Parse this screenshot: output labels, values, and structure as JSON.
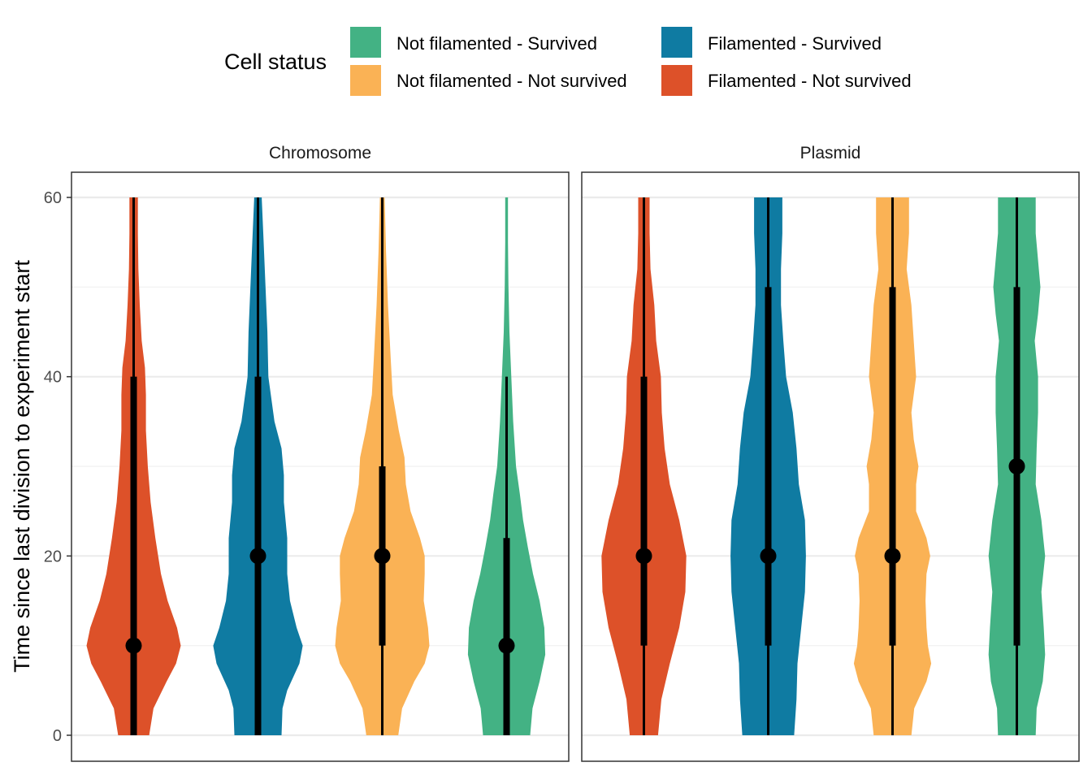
{
  "legend": {
    "title": "Cell status",
    "items": [
      {
        "label": "Not filamented - Survived",
        "color": "#43B284"
      },
      {
        "label": "Not filamented - Not survived",
        "color": "#FAB255"
      },
      {
        "label": "Filamented - Survived",
        "color": "#0F7BA2"
      },
      {
        "label": "Filamented - Not survived",
        "color": "#DD5129"
      }
    ]
  },
  "chart_data": {
    "type": "violin",
    "ylabel": "Time since last division to experiment start",
    "xlabel": "",
    "ylim": [
      0,
      60
    ],
    "y_ticks": [
      0,
      20,
      40,
      60
    ],
    "grid": true,
    "legend_position": "top",
    "facets": [
      {
        "title": "Chromosome",
        "violins": [
          {
            "status": "Filamented - Not survived",
            "color": "#DD5129",
            "profile": [
              [
                0,
                0.33
              ],
              [
                3,
                0.42
              ],
              [
                6,
                0.7
              ],
              [
                8,
                0.9
              ],
              [
                10,
                1.0
              ],
              [
                12,
                0.92
              ],
              [
                15,
                0.72
              ],
              [
                18,
                0.58
              ],
              [
                22,
                0.46
              ],
              [
                26,
                0.36
              ],
              [
                30,
                0.3
              ],
              [
                34,
                0.26
              ],
              [
                38,
                0.26
              ],
              [
                41,
                0.24
              ],
              [
                44,
                0.17
              ],
              [
                48,
                0.13
              ],
              [
                52,
                0.1
              ],
              [
                56,
                0.09
              ],
              [
                60,
                0.09
              ]
            ],
            "median": 10,
            "q1": 0,
            "q3": 40,
            "min": 0,
            "max": 60
          },
          {
            "status": "Filamented - Survived",
            "color": "#0F7BA2",
            "profile": [
              [
                0,
                0.5
              ],
              [
                3,
                0.52
              ],
              [
                5,
                0.62
              ],
              [
                8,
                0.88
              ],
              [
                10,
                0.95
              ],
              [
                12,
                0.82
              ],
              [
                15,
                0.68
              ],
              [
                18,
                0.62
              ],
              [
                22,
                0.62
              ],
              [
                26,
                0.55
              ],
              [
                29,
                0.55
              ],
              [
                32,
                0.5
              ],
              [
                35,
                0.35
              ],
              [
                40,
                0.22
              ],
              [
                45,
                0.2
              ],
              [
                50,
                0.16
              ],
              [
                55,
                0.12
              ],
              [
                60,
                0.08
              ]
            ],
            "median": 20,
            "q1": 0,
            "q3": 40,
            "min": 0,
            "max": 60
          },
          {
            "status": "Not filamented - Not survived",
            "color": "#FAB255",
            "profile": [
              [
                0,
                0.34
              ],
              [
                3,
                0.42
              ],
              [
                6,
                0.68
              ],
              [
                8,
                0.9
              ],
              [
                10,
                1.0
              ],
              [
                12,
                0.97
              ],
              [
                15,
                0.88
              ],
              [
                18,
                0.9
              ],
              [
                20,
                0.9
              ],
              [
                22,
                0.8
              ],
              [
                25,
                0.6
              ],
              [
                28,
                0.5
              ],
              [
                31,
                0.47
              ],
              [
                34,
                0.35
              ],
              [
                38,
                0.22
              ],
              [
                42,
                0.18
              ],
              [
                48,
                0.12
              ],
              [
                54,
                0.08
              ],
              [
                60,
                0.05
              ]
            ],
            "median": 20,
            "q1": 10,
            "q3": 30,
            "min": 0,
            "max": 60
          },
          {
            "status": "Not filamented - Survived",
            "color": "#43B284",
            "profile": [
              [
                0,
                0.5
              ],
              [
                3,
                0.55
              ],
              [
                6,
                0.7
              ],
              [
                9,
                0.82
              ],
              [
                12,
                0.8
              ],
              [
                15,
                0.7
              ],
              [
                18,
                0.56
              ],
              [
                21,
                0.45
              ],
              [
                24,
                0.35
              ],
              [
                27,
                0.28
              ],
              [
                30,
                0.2
              ],
              [
                35,
                0.14
              ],
              [
                40,
                0.1
              ],
              [
                45,
                0.06
              ],
              [
                50,
                0.04
              ],
              [
                55,
                0.03
              ],
              [
                60,
                0.03
              ]
            ],
            "median": 10,
            "q1": 0,
            "q3": 22,
            "min": 0,
            "max": 40
          }
        ]
      },
      {
        "title": "Plasmid",
        "violins": [
          {
            "status": "Filamented - Not survived",
            "color": "#DD5129",
            "profile": [
              [
                0,
                0.3
              ],
              [
                4,
                0.37
              ],
              [
                8,
                0.55
              ],
              [
                12,
                0.75
              ],
              [
                16,
                0.88
              ],
              [
                20,
                0.9
              ],
              [
                24,
                0.75
              ],
              [
                28,
                0.55
              ],
              [
                32,
                0.44
              ],
              [
                36,
                0.38
              ],
              [
                40,
                0.36
              ],
              [
                44,
                0.26
              ],
              [
                48,
                0.22
              ],
              [
                52,
                0.14
              ],
              [
                56,
                0.12
              ],
              [
                60,
                0.12
              ]
            ],
            "median": 20,
            "q1": 10,
            "q3": 40,
            "min": 0,
            "max": 60
          },
          {
            "status": "Filamented - Survived",
            "color": "#0F7BA2",
            "profile": [
              [
                0,
                0.55
              ],
              [
                4,
                0.6
              ],
              [
                8,
                0.62
              ],
              [
                12,
                0.7
              ],
              [
                16,
                0.78
              ],
              [
                20,
                0.8
              ],
              [
                24,
                0.78
              ],
              [
                28,
                0.65
              ],
              [
                32,
                0.6
              ],
              [
                36,
                0.52
              ],
              [
                40,
                0.38
              ],
              [
                44,
                0.32
              ],
              [
                48,
                0.27
              ],
              [
                52,
                0.27
              ],
              [
                56,
                0.3
              ],
              [
                60,
                0.3
              ]
            ],
            "median": 20,
            "q1": 10,
            "q3": 50,
            "min": 0,
            "max": 60
          },
          {
            "status": "Not filamented - Not survived",
            "color": "#FAB255",
            "profile": [
              [
                0,
                0.4
              ],
              [
                3,
                0.46
              ],
              [
                6,
                0.72
              ],
              [
                8,
                0.82
              ],
              [
                10,
                0.75
              ],
              [
                12,
                0.72
              ],
              [
                15,
                0.7
              ],
              [
                18,
                0.72
              ],
              [
                20,
                0.8
              ],
              [
                22,
                0.72
              ],
              [
                25,
                0.5
              ],
              [
                28,
                0.5
              ],
              [
                30,
                0.55
              ],
              [
                33,
                0.45
              ],
              [
                36,
                0.4
              ],
              [
                40,
                0.5
              ],
              [
                44,
                0.45
              ],
              [
                48,
                0.4
              ],
              [
                52,
                0.3
              ],
              [
                56,
                0.35
              ],
              [
                60,
                0.35
              ]
            ],
            "median": 20,
            "q1": 10,
            "q3": 50,
            "min": 0,
            "max": 60
          },
          {
            "status": "Not filamented - Survived",
            "color": "#43B284",
            "profile": [
              [
                0,
                0.4
              ],
              [
                3,
                0.42
              ],
              [
                6,
                0.55
              ],
              [
                9,
                0.6
              ],
              [
                12,
                0.57
              ],
              [
                16,
                0.52
              ],
              [
                20,
                0.6
              ],
              [
                24,
                0.52
              ],
              [
                28,
                0.4
              ],
              [
                32,
                0.42
              ],
              [
                36,
                0.45
              ],
              [
                40,
                0.45
              ],
              [
                44,
                0.38
              ],
              [
                47,
                0.45
              ],
              [
                50,
                0.5
              ],
              [
                53,
                0.45
              ],
              [
                56,
                0.4
              ],
              [
                60,
                0.4
              ]
            ],
            "median": 30,
            "q1": 10,
            "q3": 50,
            "min": 0,
            "max": 60
          }
        ]
      }
    ]
  }
}
